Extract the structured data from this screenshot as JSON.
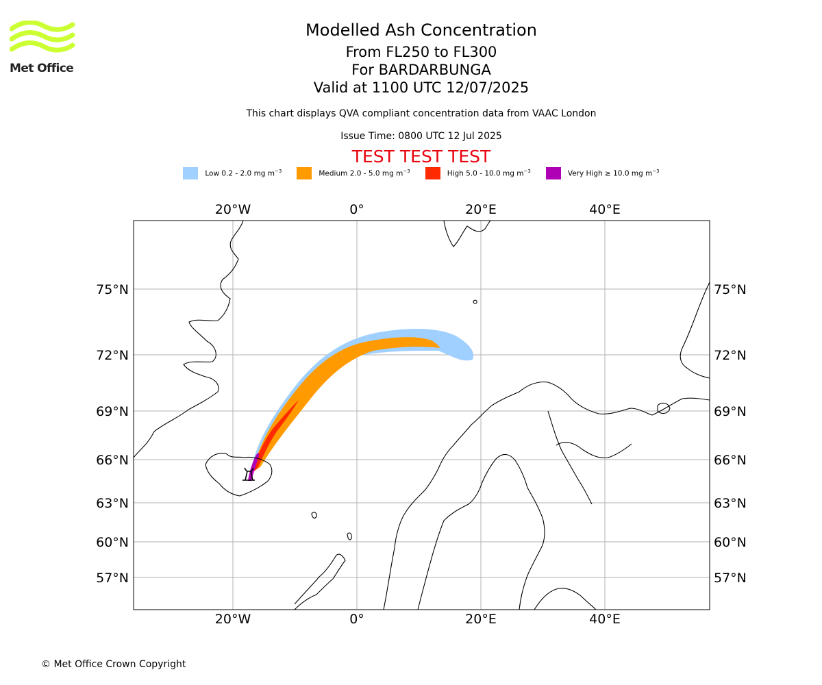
{
  "brand": {
    "name": "Met Office",
    "logo_color": "#ccff33"
  },
  "header": {
    "title": "Modelled Ash Concentration",
    "flight_levels": "From FL250 to FL300",
    "volcano": "For BARDARBUNGA",
    "valid": "Valid at 1100 UTC 12/07/2025",
    "description": "This chart displays QVA compliant concentration data from VAAC London",
    "issue_time": "Issue Time: 0800 UTC 12 Jul 2025",
    "test_banner": "TEST TEST TEST"
  },
  "legend": [
    {
      "label": "Low 0.2 - 2.0 mg m",
      "sup": "−3",
      "color": "#a0d0ff"
    },
    {
      "label": "Medium 2.0 - 5.0 mg m",
      "sup": "−3",
      "color": "#ff9a00"
    },
    {
      "label": "High 5.0 - 10.0 mg m",
      "sup": "−3",
      "color": "#ff2a00"
    },
    {
      "label": "Very High  ≥  10.0 mg m",
      "sup": "−3",
      "color": "#b000b5"
    }
  ],
  "map": {
    "lon_ticks": [
      "20°W",
      "0°",
      "20°E",
      "40°E"
    ],
    "lat_ticks": [
      "75°N",
      "72°N",
      "69°N",
      "66°N",
      "63°N",
      "60°N",
      "57°N"
    ],
    "grid_color": "#b0b0b0",
    "volcano_symbol": "volcano-icon"
  },
  "footer": {
    "copyright": "© Met Office Crown Copyright"
  }
}
